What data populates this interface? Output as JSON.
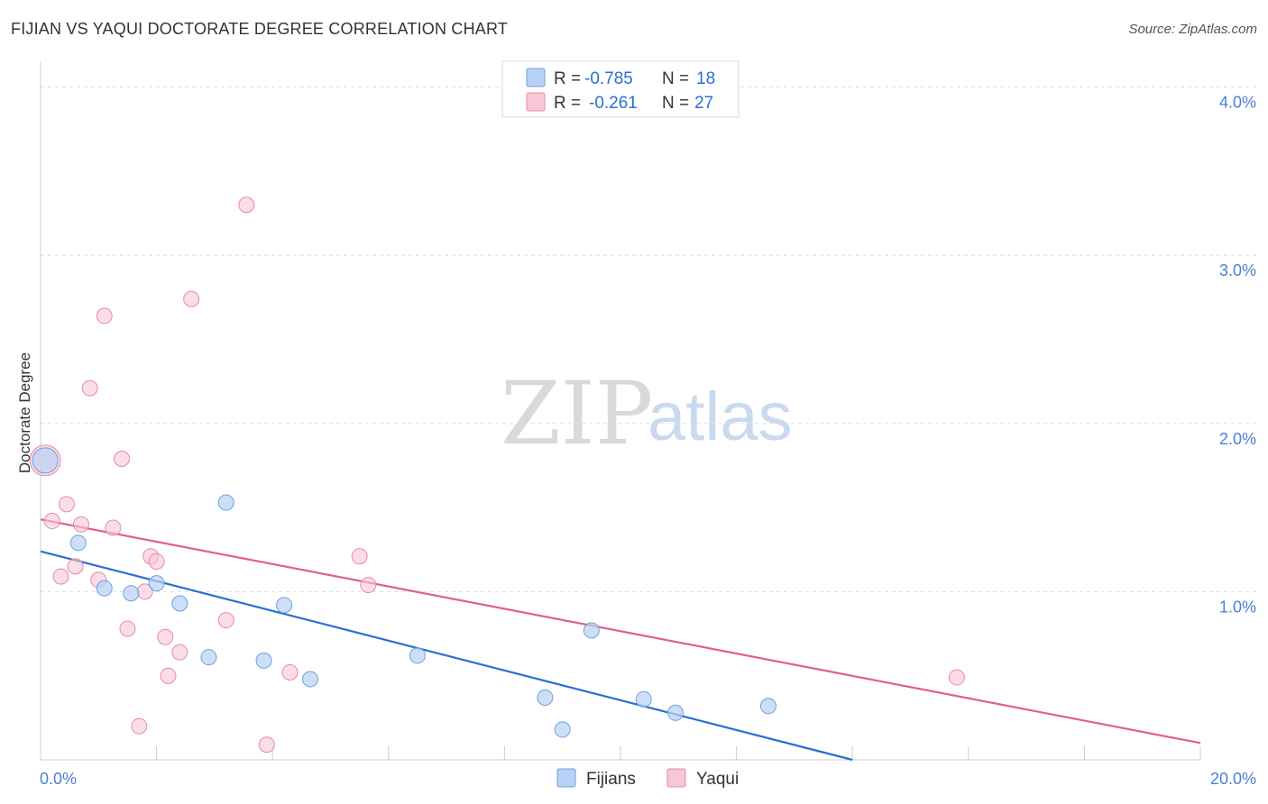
{
  "header": {
    "title": "FIJIAN VS YAQUI DOCTORATE DEGREE CORRELATION CHART",
    "source": "Source: ZipAtlas.com"
  },
  "watermark": {
    "part1": "ZIP",
    "part2": "atlas"
  },
  "legend": {
    "rows": [
      {
        "r_label": "R =",
        "r_value": "-0.785",
        "n_label": "N =",
        "n_value": "18"
      },
      {
        "r_label": "R =",
        "r_value": "-0.261",
        "n_label": "N =",
        "n_value": "27"
      }
    ]
  },
  "colors": {
    "fijians_fill": "#b8d2f5",
    "fijians_stroke": "#6f9fde",
    "fijians_line": "#2a6fd2",
    "yaqui_fill": "#f8c6d4",
    "yaqui_stroke": "#e88aa8",
    "yaqui_line": "#e0608a",
    "grid": "#dddddd",
    "axis_text": "#4a7fd4",
    "value_text": "#2a6fd2"
  },
  "chart_data": {
    "type": "scatter",
    "title": "FIJIAN VS YAQUI DOCTORATE DEGREE CORRELATION CHART",
    "xlabel": "",
    "ylabel": "Doctorate Degree",
    "xlim": [
      0,
      20
    ],
    "ylim": [
      0,
      4.1
    ],
    "x_tick_labels": [
      "0.0%",
      "20.0%"
    ],
    "y_ticks": [
      1,
      2,
      3,
      4
    ],
    "y_tick_labels": [
      "1.0%",
      "2.0%",
      "3.0%",
      "4.0%"
    ],
    "grid": true,
    "legend_position": "top-center",
    "series": [
      {
        "name": "Fijians",
        "r": -0.785,
        "n": 18,
        "points": [
          {
            "x": 0.08,
            "y": 1.78
          },
          {
            "x": 0.65,
            "y": 1.29
          },
          {
            "x": 1.1,
            "y": 1.02
          },
          {
            "x": 1.56,
            "y": 0.99
          },
          {
            "x": 2.0,
            "y": 1.05
          },
          {
            "x": 2.4,
            "y": 0.93
          },
          {
            "x": 3.2,
            "y": 1.53
          },
          {
            "x": 2.9,
            "y": 0.61
          },
          {
            "x": 3.85,
            "y": 0.59
          },
          {
            "x": 4.2,
            "y": 0.92
          },
          {
            "x": 4.65,
            "y": 0.48
          },
          {
            "x": 6.5,
            "y": 0.62
          },
          {
            "x": 8.7,
            "y": 0.37
          },
          {
            "x": 9.0,
            "y": 0.18
          },
          {
            "x": 9.5,
            "y": 0.77
          },
          {
            "x": 10.4,
            "y": 0.36
          },
          {
            "x": 10.95,
            "y": 0.28
          },
          {
            "x": 12.55,
            "y": 0.32
          }
        ],
        "trend": {
          "x": [
            0,
            14.0
          ],
          "y": [
            1.24,
            0.0
          ]
        }
      },
      {
        "name": "Yaqui",
        "r": -0.261,
        "n": 27,
        "points": [
          {
            "x": 0.08,
            "y": 1.78
          },
          {
            "x": 0.2,
            "y": 1.42
          },
          {
            "x": 0.35,
            "y": 1.09
          },
          {
            "x": 0.45,
            "y": 1.52
          },
          {
            "x": 0.6,
            "y": 1.15
          },
          {
            "x": 0.7,
            "y": 1.4
          },
          {
            "x": 0.85,
            "y": 2.21
          },
          {
            "x": 1.0,
            "y": 1.07
          },
          {
            "x": 1.1,
            "y": 2.64
          },
          {
            "x": 1.25,
            "y": 1.38
          },
          {
            "x": 1.4,
            "y": 1.79
          },
          {
            "x": 1.5,
            "y": 0.78
          },
          {
            "x": 1.7,
            "y": 0.2
          },
          {
            "x": 1.8,
            "y": 1.0
          },
          {
            "x": 1.9,
            "y": 1.21
          },
          {
            "x": 2.0,
            "y": 1.18
          },
          {
            "x": 2.15,
            "y": 0.73
          },
          {
            "x": 2.2,
            "y": 0.5
          },
          {
            "x": 2.4,
            "y": 0.64
          },
          {
            "x": 2.6,
            "y": 2.74
          },
          {
            "x": 3.2,
            "y": 0.83
          },
          {
            "x": 3.55,
            "y": 3.3
          },
          {
            "x": 3.9,
            "y": 0.09
          },
          {
            "x": 4.3,
            "y": 0.52
          },
          {
            "x": 5.5,
            "y": 1.21
          },
          {
            "x": 5.65,
            "y": 1.04
          },
          {
            "x": 15.8,
            "y": 0.49
          }
        ],
        "trend": {
          "x": [
            0,
            20.0
          ],
          "y": [
            1.43,
            0.1
          ]
        }
      }
    ]
  }
}
